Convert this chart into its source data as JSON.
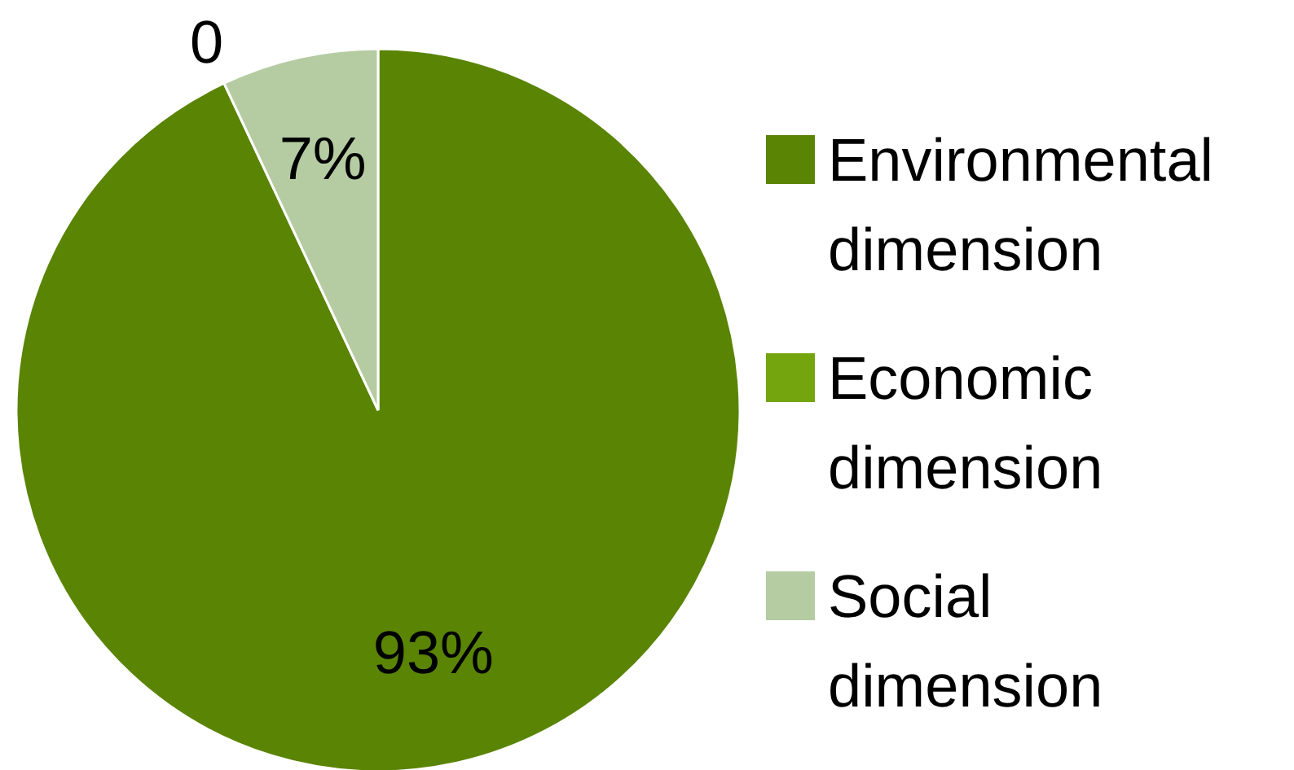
{
  "chart_data": {
    "type": "pie",
    "categories": [
      "Environmental dimension",
      "Economic dimension",
      "Social dimension"
    ],
    "values": [
      93,
      0,
      7
    ],
    "colors": [
      "#5a8404",
      "#74a40e",
      "#b5cca3"
    ],
    "value_labels": [
      "93%",
      "0",
      "7%"
    ],
    "legend": "right"
  }
}
